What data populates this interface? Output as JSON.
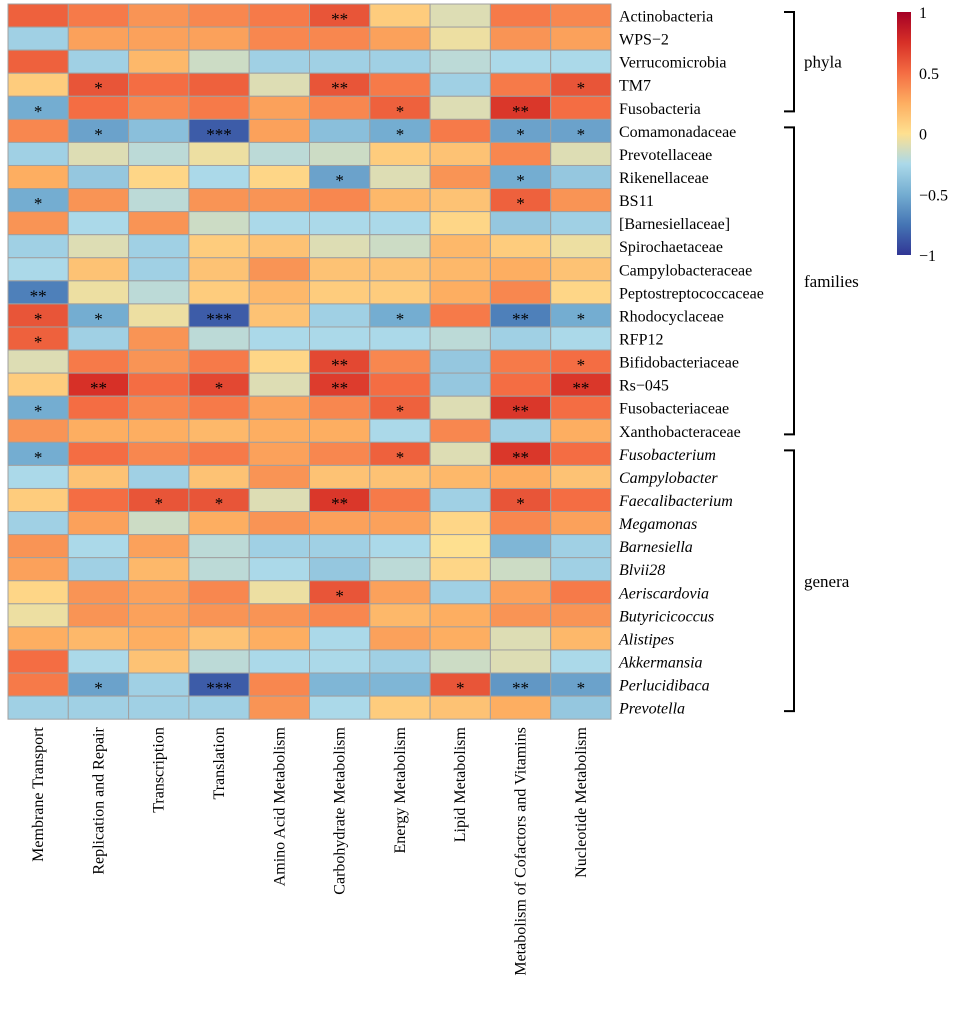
{
  "chart_data": {
    "type": "heatmap",
    "columns": [
      "Membrane Transport",
      "Replication and Repair",
      "Transcription",
      "Translation",
      "Amino Acid Metabolism",
      "Carbohydrate Metabolism",
      "Energy Metabolism",
      "Lipid Metabolism",
      "Metabolism of Cofactors and Vitamins",
      "Nucleotide Metabolism"
    ],
    "rows": [
      {
        "label": "Actinobacteria",
        "italic": false,
        "values": [
          0.55,
          0.45,
          0.35,
          0.4,
          0.45,
          0.6,
          0.1,
          -0.1,
          0.45,
          0.4
        ],
        "stars": [
          "",
          "",
          "",
          "",
          "",
          "**",
          "",
          "",
          "",
          ""
        ]
      },
      {
        "label": "WPS−2",
        "italic": false,
        "values": [
          -0.3,
          0.3,
          0.3,
          0.3,
          0.4,
          0.4,
          0.3,
          -0.05,
          0.35,
          0.3
        ],
        "stars": [
          "",
          "",
          "",
          "",
          "",
          "",
          "",
          "",
          "",
          ""
        ]
      },
      {
        "label": "Verrucomicrobia",
        "italic": false,
        "values": [
          0.55,
          -0.3,
          0.2,
          -0.15,
          -0.3,
          -0.3,
          -0.3,
          -0.2,
          -0.25,
          -0.25
        ],
        "stars": [
          "",
          "",
          "",
          "",
          "",
          "",
          "",
          "",
          "",
          ""
        ]
      },
      {
        "label": "TM7",
        "italic": false,
        "values": [
          0.1,
          0.6,
          0.5,
          0.55,
          -0.1,
          0.6,
          0.45,
          -0.3,
          0.45,
          0.6
        ],
        "stars": [
          "",
          "*",
          "",
          "",
          "",
          "**",
          "",
          "",
          "",
          "*"
        ]
      },
      {
        "label": "Fusobacteria",
        "italic": false,
        "values": [
          -0.5,
          0.5,
          0.4,
          0.45,
          0.3,
          0.4,
          0.55,
          -0.1,
          0.72,
          0.5
        ],
        "stars": [
          "*",
          "",
          "",
          "",
          "",
          "",
          "*",
          "",
          "**",
          ""
        ]
      },
      {
        "label": "Comamonadaceae",
        "italic": false,
        "values": [
          0.4,
          -0.55,
          -0.4,
          -0.85,
          0.3,
          -0.4,
          -0.5,
          0.45,
          -0.55,
          -0.55
        ],
        "stars": [
          "",
          "*",
          "",
          "***",
          "",
          "",
          "*",
          "",
          "*",
          "*"
        ]
      },
      {
        "label": "Prevotellaceae",
        "italic": false,
        "values": [
          -0.3,
          -0.1,
          -0.2,
          -0.05,
          -0.2,
          -0.15,
          0.1,
          0.15,
          0.4,
          -0.1
        ],
        "stars": [
          "",
          "",
          "",
          "",
          "",
          "",
          "",
          "",
          "",
          ""
        ]
      },
      {
        "label": "Rikenellaceae",
        "italic": false,
        "values": [
          0.25,
          -0.35,
          0.05,
          -0.25,
          0.05,
          -0.55,
          -0.1,
          0.35,
          -0.5,
          -0.35
        ],
        "stars": [
          "",
          "",
          "",
          "",
          "",
          "*",
          "",
          "",
          "*",
          ""
        ]
      },
      {
        "label": "BS11",
        "italic": false,
        "values": [
          -0.5,
          0.35,
          -0.2,
          0.35,
          0.35,
          0.4,
          0.2,
          0.15,
          0.55,
          0.35
        ],
        "stars": [
          "*",
          "",
          "",
          "",
          "",
          "",
          "",
          "",
          "*",
          ""
        ]
      },
      {
        "label": "[Barnesiellaceae]",
        "italic": false,
        "values": [
          0.35,
          -0.25,
          0.35,
          -0.15,
          -0.25,
          -0.25,
          -0.25,
          0.05,
          -0.35,
          -0.3
        ],
        "stars": [
          "",
          "",
          "",
          "",
          "",
          "",
          "",
          "",
          "",
          ""
        ]
      },
      {
        "label": "Spirochaetaceae",
        "italic": false,
        "values": [
          -0.3,
          -0.1,
          -0.3,
          0.1,
          0.15,
          -0.1,
          -0.15,
          0.2,
          0.1,
          -0.05
        ],
        "stars": [
          "",
          "",
          "",
          "",
          "",
          "",
          "",
          "",
          "",
          ""
        ]
      },
      {
        "label": "Campylobacteraceae",
        "italic": false,
        "values": [
          -0.25,
          0.15,
          -0.3,
          0.15,
          0.35,
          0.15,
          0.15,
          0.2,
          0.25,
          0.15
        ],
        "stars": [
          "",
          "",
          "",
          "",
          "",
          "",
          "",
          "",
          "",
          ""
        ]
      },
      {
        "label": "Peptostreptococcaceae",
        "italic": false,
        "values": [
          -0.7,
          -0.05,
          -0.2,
          0.1,
          0.2,
          0.1,
          0.1,
          0.25,
          0.4,
          0.05
        ],
        "stars": [
          "**",
          "",
          "",
          "",
          "",
          "",
          "",
          "",
          "",
          ""
        ]
      },
      {
        "label": "Rhodocyclaceae",
        "italic": false,
        "values": [
          0.6,
          -0.5,
          -0.05,
          -0.85,
          0.15,
          -0.3,
          -0.5,
          0.45,
          -0.7,
          -0.5
        ],
        "stars": [
          "*",
          "*",
          "",
          "***",
          "",
          "",
          "*",
          "",
          "**",
          "*"
        ]
      },
      {
        "label": "RFP12",
        "italic": false,
        "values": [
          0.55,
          -0.3,
          0.35,
          -0.2,
          -0.25,
          -0.25,
          -0.25,
          -0.2,
          -0.3,
          -0.25
        ],
        "stars": [
          "*",
          "",
          "",
          "",
          "",
          "",
          "",
          "",
          "",
          ""
        ]
      },
      {
        "label": "Bifidobacteriaceae",
        "italic": false,
        "values": [
          -0.1,
          0.45,
          0.35,
          0.45,
          0.05,
          0.65,
          0.4,
          -0.35,
          0.45,
          0.5
        ],
        "stars": [
          "",
          "",
          "",
          "",
          "",
          "**",
          "",
          "",
          "",
          "*"
        ]
      },
      {
        "label": "Rs−045",
        "italic": false,
        "values": [
          0.1,
          0.75,
          0.5,
          0.65,
          -0.1,
          0.7,
          0.5,
          -0.35,
          0.5,
          0.72
        ],
        "stars": [
          "",
          "**",
          "",
          "*",
          "",
          "**",
          "",
          "",
          "",
          "**"
        ]
      },
      {
        "label": "Fusobacteriaceae",
        "italic": false,
        "values": [
          -0.5,
          0.5,
          0.4,
          0.45,
          0.3,
          0.4,
          0.55,
          -0.1,
          0.72,
          0.5
        ],
        "stars": [
          "*",
          "",
          "",
          "",
          "",
          "",
          "*",
          "",
          "**",
          ""
        ]
      },
      {
        "label": "Xanthobacteraceae",
        "italic": false,
        "values": [
          0.35,
          0.25,
          0.25,
          0.2,
          0.25,
          0.25,
          -0.25,
          0.4,
          -0.3,
          0.25
        ],
        "stars": [
          "",
          "",
          "",
          "",
          "",
          "",
          "",
          "",
          "",
          ""
        ]
      },
      {
        "label": "Fusobacterium",
        "italic": true,
        "values": [
          -0.5,
          0.5,
          0.4,
          0.45,
          0.3,
          0.4,
          0.55,
          -0.1,
          0.72,
          0.5
        ],
        "stars": [
          "*",
          "",
          "",
          "",
          "",
          "",
          "*",
          "",
          "**",
          ""
        ]
      },
      {
        "label": "Campylobacter",
        "italic": true,
        "values": [
          -0.25,
          0.15,
          -0.3,
          0.15,
          0.35,
          0.15,
          0.15,
          0.2,
          0.25,
          0.15
        ],
        "stars": [
          "",
          "",
          "",
          "",
          "",
          "",
          "",
          "",
          "",
          ""
        ]
      },
      {
        "label": "Faecalibacterium",
        "italic": true,
        "values": [
          0.1,
          0.5,
          0.6,
          0.6,
          -0.1,
          0.72,
          0.45,
          -0.3,
          0.6,
          0.5
        ],
        "stars": [
          "",
          "",
          "*",
          "*",
          "",
          "**",
          "",
          "",
          "*",
          ""
        ]
      },
      {
        "label": "Megamonas",
        "italic": true,
        "values": [
          -0.3,
          0.3,
          -0.15,
          0.25,
          0.35,
          0.3,
          0.3,
          0.05,
          0.4,
          0.3
        ],
        "stars": [
          "",
          "",
          "",
          "",
          "",
          "",
          "",
          "",
          "",
          ""
        ]
      },
      {
        "label": "Barnesiella",
        "italic": true,
        "values": [
          0.35,
          -0.25,
          0.3,
          -0.2,
          -0.3,
          -0.3,
          -0.25,
          0.0,
          -0.45,
          -0.3
        ],
        "stars": [
          "",
          "",
          "",
          "",
          "",
          "",
          "",
          "",
          "",
          ""
        ]
      },
      {
        "label": "Blvii28",
        "italic": true,
        "values": [
          0.3,
          -0.3,
          0.2,
          -0.2,
          -0.25,
          -0.35,
          -0.2,
          0.05,
          -0.15,
          -0.3
        ],
        "stars": [
          "",
          "",
          "",
          "",
          "",
          "",
          "",
          "",
          "",
          ""
        ]
      },
      {
        "label": "Aeriscardovia",
        "italic": true,
        "values": [
          0.05,
          0.35,
          0.3,
          0.4,
          -0.05,
          0.6,
          0.3,
          -0.3,
          0.3,
          0.45
        ],
        "stars": [
          "",
          "",
          "",
          "",
          "",
          "*",
          "",
          "",
          "",
          ""
        ]
      },
      {
        "label": "Butyricicoccus",
        "italic": true,
        "values": [
          -0.05,
          0.35,
          0.3,
          0.35,
          0.35,
          0.4,
          0.2,
          0.25,
          0.35,
          0.35
        ],
        "stars": [
          "",
          "",
          "",
          "",
          "",
          "",
          "",
          "",
          "",
          ""
        ]
      },
      {
        "label": "Alistipes",
        "italic": true,
        "values": [
          0.25,
          0.2,
          0.25,
          0.15,
          0.25,
          -0.25,
          0.3,
          0.25,
          -0.1,
          0.2
        ],
        "stars": [
          "",
          "",
          "",
          "",
          "",
          "",
          "",
          "",
          "",
          ""
        ]
      },
      {
        "label": "Akkermansia",
        "italic": true,
        "values": [
          0.5,
          -0.25,
          0.15,
          -0.2,
          -0.25,
          -0.25,
          -0.3,
          -0.15,
          -0.1,
          -0.25
        ],
        "stars": [
          "",
          "",
          "",
          "",
          "",
          "",
          "",
          "",
          "",
          ""
        ]
      },
      {
        "label": "Perlucidibaca",
        "italic": true,
        "values": [
          0.45,
          -0.55,
          -0.3,
          -0.85,
          0.4,
          -0.45,
          -0.45,
          0.6,
          -0.6,
          -0.55
        ],
        "stars": [
          "",
          "*",
          "",
          "***",
          "",
          "",
          "",
          "*",
          "**",
          "*"
        ]
      },
      {
        "label": "Prevotella",
        "italic": true,
        "values": [
          -0.3,
          -0.3,
          -0.3,
          -0.3,
          0.35,
          -0.25,
          0.1,
          0.15,
          0.25,
          -0.35
        ],
        "stars": [
          "",
          "",
          "",
          "",
          "",
          "",
          "",
          "",
          "",
          ""
        ]
      }
    ],
    "groups": [
      {
        "label": "phyla",
        "first_row": 0,
        "last_row": 4
      },
      {
        "label": "families",
        "first_row": 5,
        "last_row": 18
      },
      {
        "label": "genera",
        "first_row": 19,
        "last_row": 30
      }
    ],
    "color_scale": {
      "min": -1,
      "max": 1,
      "stops": [
        {
          "value": -1,
          "color": "#313695"
        },
        {
          "value": -0.75,
          "color": "#4575b4"
        },
        {
          "value": -0.5,
          "color": "#74add1"
        },
        {
          "value": -0.25,
          "color": "#abd9e9"
        },
        {
          "value": 0,
          "color": "#fee090"
        },
        {
          "value": 0.25,
          "color": "#fdae61"
        },
        {
          "value": 0.5,
          "color": "#f46d43"
        },
        {
          "value": 0.75,
          "color": "#d73027"
        },
        {
          "value": 1,
          "color": "#a50026"
        }
      ],
      "tick_labels": [
        "1",
        "0.5",
        "0",
        "−0.5",
        "−1"
      ],
      "tick_values": [
        1,
        0.5,
        0,
        -0.5,
        -1
      ]
    }
  }
}
